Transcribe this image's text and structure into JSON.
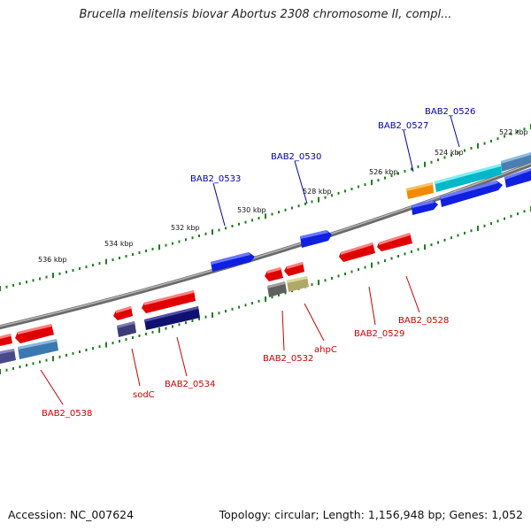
{
  "title": "Brucella melitensis biovar Abortus 2308 chromosome II, compl...",
  "footer": {
    "accession": "Accession: NC_007624",
    "topology": "Topology: circular; Length: 1,156,948 bp; Genes: 1,052"
  },
  "colors": {
    "forward_label": "#0000aa",
    "reverse_label": "#cc0000",
    "backbone": "#888888",
    "tick": "#1e7d1e"
  },
  "ticks": [
    {
      "label": "522 kbp"
    },
    {
      "label": "524 kbp"
    },
    {
      "label": "526 kbp"
    },
    {
      "label": "528 kbp"
    },
    {
      "label": "530 kbp"
    },
    {
      "label": "532 kbp"
    },
    {
      "label": "534 kbp"
    },
    {
      "label": "536 kbp"
    }
  ],
  "genes_forward": [
    {
      "name": "BAB2_0526"
    },
    {
      "name": "BAB2_0527"
    },
    {
      "name": "BAB2_0530"
    },
    {
      "name": "BAB2_0533"
    }
  ],
  "genes_reverse": [
    {
      "name": "BAB2_0528"
    },
    {
      "name": "BAB2_0529"
    },
    {
      "name": "ahpC"
    },
    {
      "name": "BAB2_0532"
    },
    {
      "name": "BAB2_0534"
    },
    {
      "name": "sodC"
    },
    {
      "name": "BAB2_0538"
    }
  ]
}
